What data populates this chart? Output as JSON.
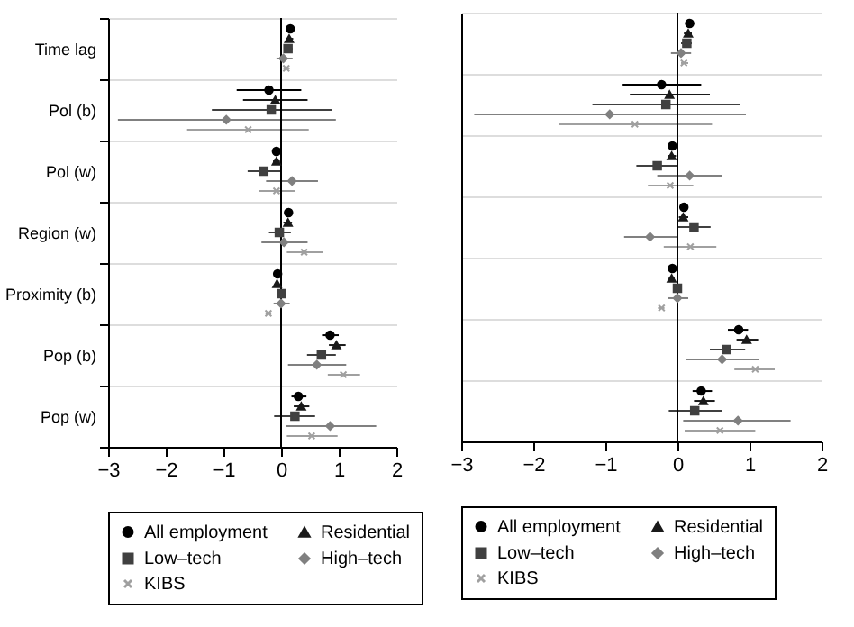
{
  "chart_data": [
    {
      "type": "scatter",
      "orientation": "horizontal",
      "categories": [
        "Time lag",
        "Pol (b)",
        "Pol (w)",
        "Region (w)",
        "Proximity (b)",
        "Pop (b)",
        "Pop (w)"
      ],
      "series": [
        {
          "name": "All employment",
          "color": "#000000",
          "marker": "circle",
          "values": [
            0.16,
            -0.21,
            -0.08,
            0.13,
            -0.06,
            0.85,
            0.3
          ],
          "errors": [
            [
              0.09,
              0.24
            ],
            [
              -0.77,
              0.35
            ],
            [
              -0.15,
              -0.01
            ],
            [
              0.06,
              0.2
            ],
            [
              -0.1,
              -0.02
            ],
            [
              0.71,
              1.0
            ],
            [
              0.18,
              0.44
            ]
          ]
        },
        {
          "name": "Residential",
          "color": "#1a1a1a",
          "marker": "triangle",
          "values": [
            0.14,
            -0.1,
            -0.08,
            0.12,
            -0.07,
            0.96,
            0.35
          ],
          "errors": [
            [
              0.08,
              0.21
            ],
            [
              -0.66,
              0.46
            ],
            [
              -0.14,
              -0.02
            ],
            [
              0.04,
              0.19
            ],
            [
              -0.11,
              -0.03
            ],
            [
              0.83,
              1.12
            ],
            [
              0.22,
              0.49
            ]
          ]
        },
        {
          "name": "Low–tech",
          "color": "#404040",
          "marker": "square",
          "values": [
            0.12,
            -0.17,
            -0.3,
            -0.03,
            0.01,
            0.7,
            0.24
          ],
          "errors": [
            [
              0.06,
              0.2
            ],
            [
              -1.2,
              0.89
            ],
            [
              -0.58,
              0
            ],
            [
              -0.21,
              0.17
            ],
            [
              -0.03,
              0.05
            ],
            [
              0.45,
              0.95
            ],
            [
              -0.12,
              0.59
            ]
          ]
        },
        {
          "name": "High–tech",
          "color": "#808080",
          "marker": "diamond",
          "values": [
            0.04,
            -0.95,
            0.19,
            0.05,
            0,
            0.62,
            0.85
          ],
          "errors": [
            [
              -0.08,
              0.2
            ],
            [
              -2.83,
              0.95
            ],
            [
              -0.26,
              0.64
            ],
            [
              -0.34,
              0.46
            ],
            [
              -0.13,
              0.15
            ],
            [
              0.12,
              1.13
            ],
            [
              0.08,
              1.65
            ]
          ]
        },
        {
          "name": "KIBS",
          "color": "#a0a0a0",
          "marker": "cross",
          "values": [
            0.09,
            -0.57,
            -0.08,
            0.4,
            -0.22,
            1.08,
            0.53
          ],
          "errors": [
            [
              0.04,
              0.15
            ],
            [
              -1.63,
              0.48
            ],
            [
              -0.38,
              0.24
            ],
            [
              0.1,
              0.72
            ],
            [
              -0.27,
              -0.17
            ],
            [
              0.81,
              1.37
            ],
            [
              0.1,
              0.98
            ]
          ]
        }
      ],
      "xlim": [
        -3,
        2
      ],
      "xticks": [
        -3,
        -2,
        -1,
        0,
        1,
        2
      ],
      "ref_lines": [
        {
          "axis": "x",
          "value": 0
        }
      ],
      "grid": "y",
      "legend": "bottom"
    },
    {
      "type": "scatter",
      "orientation": "horizontal",
      "categories": [
        null,
        null,
        null,
        null,
        null,
        null,
        null
      ],
      "series": [
        {
          "name": "All employment",
          "color": "#000000",
          "marker": "circle",
          "values": [
            0.17,
            -0.22,
            -0.07,
            0.09,
            -0.07,
            0.85,
            0.33
          ],
          "errors": [
            [
              0.11,
              0.23
            ],
            [
              -0.76,
              0.33
            ],
            [
              -0.12,
              -0.02
            ],
            [
              0.03,
              0.15
            ],
            [
              -0.11,
              -0.03
            ],
            [
              0.7,
              0.98
            ],
            [
              0.21,
              0.48
            ]
          ]
        },
        {
          "name": "Residential",
          "color": "#1a1a1a",
          "marker": "triangle",
          "values": [
            0.15,
            -0.11,
            -0.08,
            0.08,
            -0.08,
            0.96,
            0.36
          ],
          "errors": [
            [
              0.09,
              0.2
            ],
            [
              -0.66,
              0.45
            ],
            [
              -0.13,
              -0.02
            ],
            [
              0.02,
              0.15
            ],
            [
              -0.12,
              -0.04
            ],
            [
              0.82,
              1.12
            ],
            [
              0.23,
              0.52
            ]
          ]
        },
        {
          "name": "Low–tech",
          "color": "#404040",
          "marker": "square",
          "values": [
            0.13,
            -0.16,
            -0.28,
            0.23,
            0,
            0.68,
            0.24
          ],
          "errors": [
            [
              0.05,
              0.2
            ],
            [
              -1.18,
              0.87
            ],
            [
              -0.57,
              0
            ],
            [
              0,
              0.46
            ],
            [
              -0.05,
              0.05
            ],
            [
              0.45,
              0.94
            ],
            [
              -0.12,
              0.62
            ]
          ]
        },
        {
          "name": "High–tech",
          "color": "#808080",
          "marker": "diamond",
          "values": [
            0.05,
            -0.94,
            0.17,
            -0.38,
            0,
            0.62,
            0.84
          ],
          "errors": [
            [
              -0.09,
              0.19
            ],
            [
              -2.82,
              0.95
            ],
            [
              -0.28,
              0.62
            ],
            [
              -0.74,
              0
            ],
            [
              -0.13,
              0.15
            ],
            [
              0.12,
              1.13
            ],
            [
              0.08,
              1.57
            ]
          ]
        },
        {
          "name": "KIBS",
          "color": "#a0a0a0",
          "marker": "cross",
          "values": [
            0.09,
            -0.59,
            -0.1,
            0.18,
            -0.22,
            1.08,
            0.59
          ],
          "errors": [
            [
              0.05,
              0.15
            ],
            [
              -1.64,
              0.48
            ],
            [
              -0.41,
              0.22
            ],
            [
              -0.19,
              0.54
            ],
            [
              -0.27,
              -0.18
            ],
            [
              0.79,
              1.35
            ],
            [
              0.1,
              1.08
            ]
          ]
        }
      ],
      "xlim": [
        -3,
        2
      ],
      "xticks": [
        -3,
        -2,
        -1,
        0,
        1,
        2
      ],
      "ref_lines": [
        {
          "axis": "x",
          "value": 0
        }
      ],
      "grid": "y",
      "legend": "bottom",
      "tick_labels": "x"
    }
  ]
}
